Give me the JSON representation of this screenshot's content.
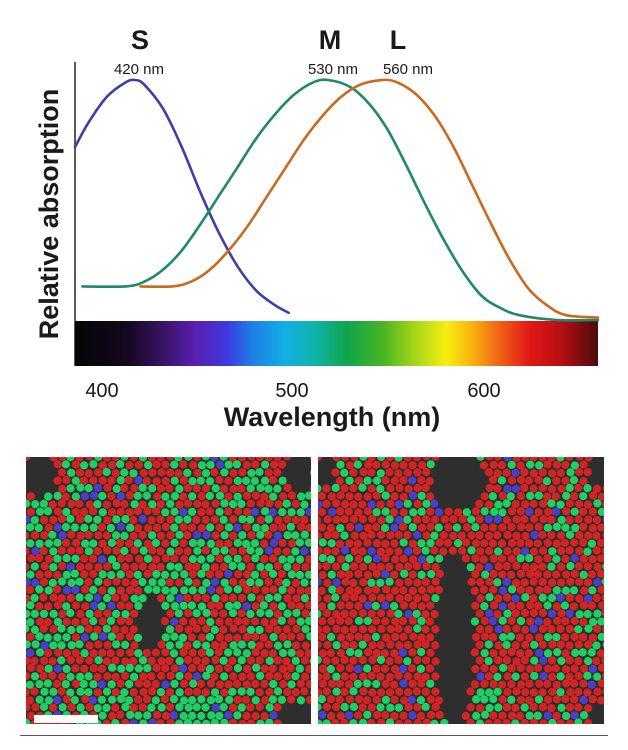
{
  "chart_data": {
    "type": "line",
    "xlabel": "Wavelength (nm)",
    "ylabel": "Relative absorption",
    "xlim": [
      393,
      672
    ],
    "ylim": [
      0,
      1
    ],
    "x_ticks": [
      400,
      500,
      600
    ],
    "legend": "labels above peaks",
    "series": [
      {
        "name": "S",
        "peak_label": "420 nm",
        "color": "#3d3fa8",
        "points": [
          [
            393,
            0.72
          ],
          [
            400,
            0.82
          ],
          [
            410,
            0.93
          ],
          [
            420,
            0.99
          ],
          [
            425,
            1.0
          ],
          [
            430,
            0.98
          ],
          [
            440,
            0.88
          ],
          [
            450,
            0.72
          ],
          [
            460,
            0.53
          ],
          [
            470,
            0.36
          ],
          [
            480,
            0.22
          ],
          [
            490,
            0.12
          ],
          [
            500,
            0.06
          ],
          [
            507,
            0.03
          ]
        ]
      },
      {
        "name": "M",
        "peak_label": "530 nm",
        "color": "#1d8a6a",
        "points": [
          [
            397,
            0.14
          ],
          [
            420,
            0.14
          ],
          [
            430,
            0.16
          ],
          [
            440,
            0.21
          ],
          [
            450,
            0.29
          ],
          [
            460,
            0.4
          ],
          [
            470,
            0.52
          ],
          [
            480,
            0.64
          ],
          [
            490,
            0.76
          ],
          [
            500,
            0.86
          ],
          [
            510,
            0.94
          ],
          [
            520,
            0.99
          ],
          [
            528,
            1.0
          ],
          [
            540,
            0.97
          ],
          [
            550,
            0.9
          ],
          [
            560,
            0.79
          ],
          [
            570,
            0.64
          ],
          [
            580,
            0.48
          ],
          [
            590,
            0.33
          ],
          [
            600,
            0.2
          ],
          [
            610,
            0.1
          ],
          [
            620,
            0.05
          ],
          [
            630,
            0.02
          ],
          [
            650,
            0.0
          ],
          [
            672,
            0.0
          ]
        ]
      },
      {
        "name": "L",
        "peak_label": "560 nm",
        "color": "#c96a1e",
        "points": [
          [
            428,
            0.14
          ],
          [
            445,
            0.14
          ],
          [
            455,
            0.16
          ],
          [
            465,
            0.21
          ],
          [
            475,
            0.29
          ],
          [
            485,
            0.39
          ],
          [
            495,
            0.51
          ],
          [
            505,
            0.63
          ],
          [
            515,
            0.75
          ],
          [
            525,
            0.85
          ],
          [
            535,
            0.93
          ],
          [
            545,
            0.98
          ],
          [
            557,
            1.0
          ],
          [
            565,
            0.99
          ],
          [
            575,
            0.94
          ],
          [
            585,
            0.85
          ],
          [
            595,
            0.72
          ],
          [
            605,
            0.56
          ],
          [
            615,
            0.4
          ],
          [
            625,
            0.25
          ],
          [
            635,
            0.13
          ],
          [
            645,
            0.06
          ],
          [
            655,
            0.02
          ],
          [
            672,
            0.01
          ]
        ]
      }
    ],
    "spectrum_bar": true
  },
  "mosaic_panels": [
    "left-retina-mosaic",
    "right-retina-mosaic"
  ],
  "colors": {
    "l_cone": "#d42323",
    "m_cone": "#1fcf63",
    "s_cone": "#4a3fc8",
    "background": "#2e2e2e",
    "scale_bar": "#ffffff"
  }
}
